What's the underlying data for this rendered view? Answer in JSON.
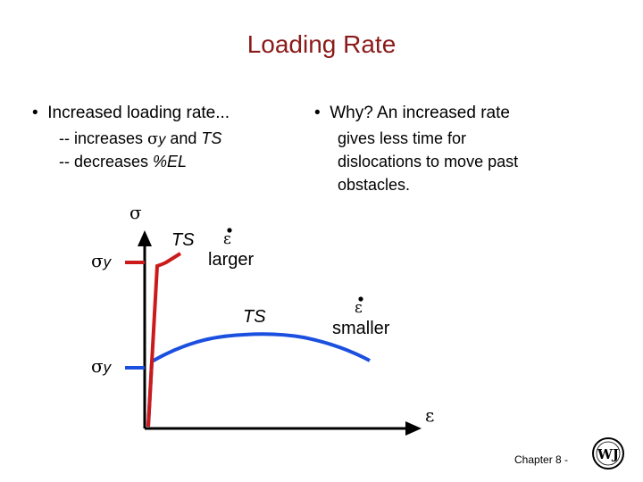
{
  "title": "Loading Rate",
  "left_bullet": {
    "text": "Increased loading rate...",
    "line1_prefix": "-- increases ",
    "line1_sigma": "σ",
    "line1_sub": "y",
    "line1_mid": " and ",
    "line1_ts": "TS",
    "line2_prefix": "-- decreases ",
    "line2_el": "%EL"
  },
  "right_bullet": {
    "text": "Why?  An increased rate",
    "lines": [
      "gives less time for",
      "dislocations to move past",
      "obstacles."
    ]
  },
  "diagram": {
    "y_axis_symbol": "σ",
    "x_axis_symbol": "ε",
    "sigma_y_symbol": "σ",
    "sigma_y_sub": "y",
    "ts_label": "TS",
    "rate_symbol": "ε",
    "larger_label": "larger",
    "smaller_label": "smaller",
    "colors": {
      "fast": "#cc1a1a",
      "slow": "#1a4fe0",
      "axes": "#000000"
    }
  },
  "footer": {
    "chapter": "Chapter 8 -",
    "logo": "WJ"
  }
}
